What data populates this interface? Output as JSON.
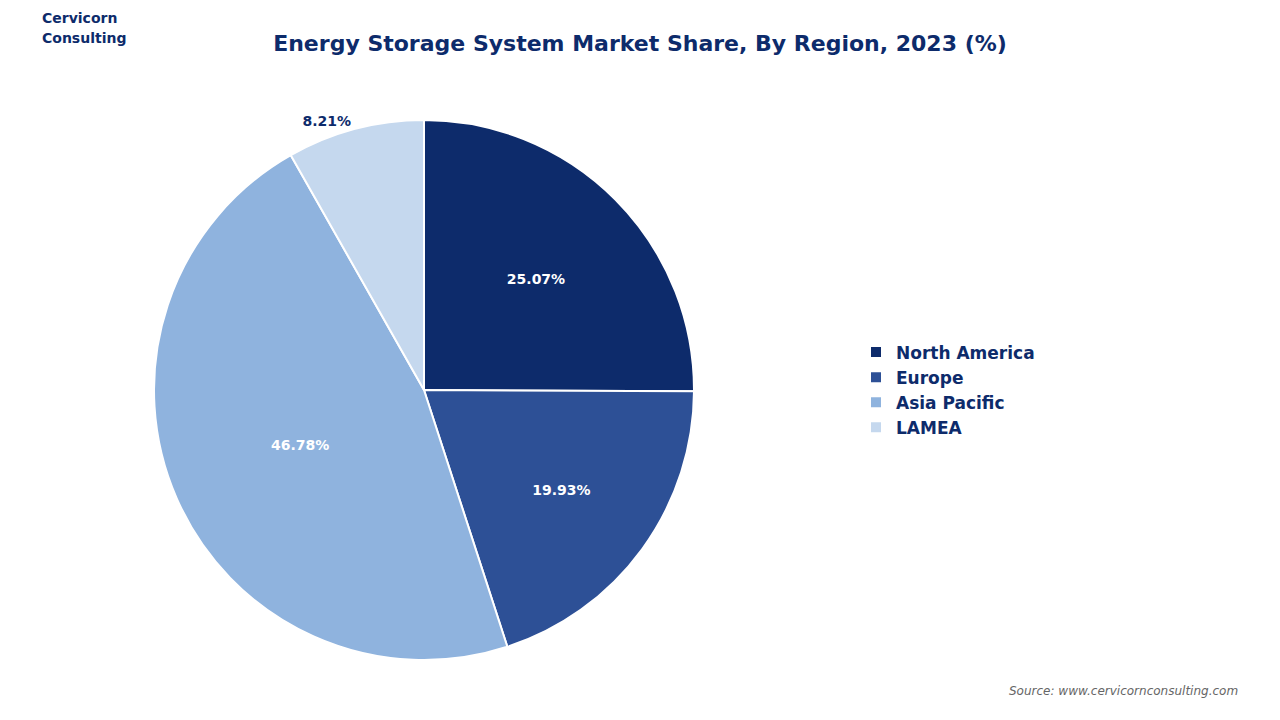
{
  "chart_data": {
    "type": "pie",
    "title": "Energy Storage System Market Share, By Region, 2023 (%)",
    "categories": [
      "North America",
      "Europe",
      "Asia Pacific",
      "LAMEA"
    ],
    "values": [
      25.07,
      19.93,
      46.78,
      8.21
    ],
    "value_labels": [
      "25.07%",
      "19.93%",
      "46.78%",
      "8.21%"
    ],
    "colors": [
      "#0d2b6b",
      "#2d5096",
      "#8fb3de",
      "#c5d8ee"
    ],
    "data_labels": true,
    "legend": "right",
    "annotations": [
      "Cervicorn",
      "Consulting",
      "Source: www.cervicornconsulting.com"
    ]
  }
}
